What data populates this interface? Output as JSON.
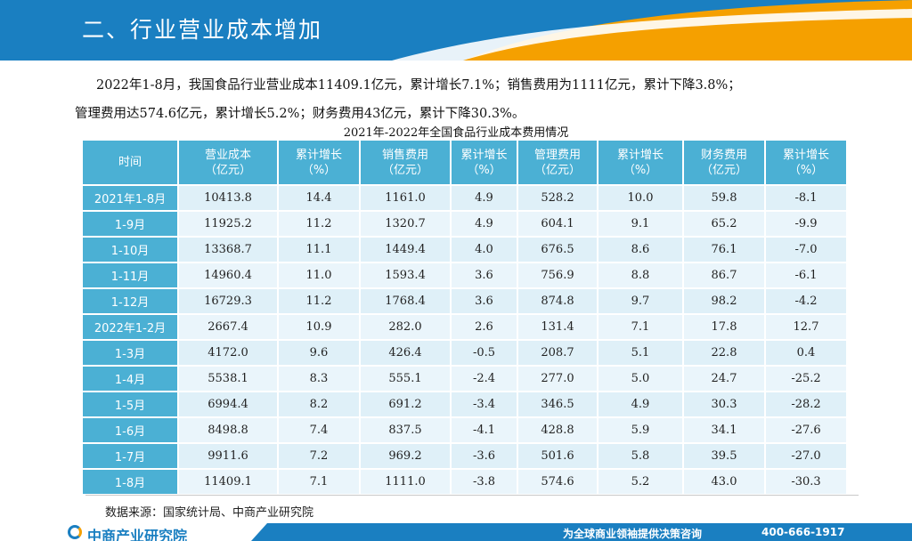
{
  "header": {
    "title": "二、行业营业成本增加"
  },
  "intro": {
    "line1": "2022年1-8月，我国食品行业营业成本11409.1亿元，累计增长7.1%；销售费用为1111亿元，累计下降3.8%；",
    "line2": "管理费用达574.6亿元，累计增长5.2%；财务费用43亿元，累计下降30.3%。"
  },
  "table": {
    "title": "2021年-2022年全国食品行业成本费用情况",
    "headers": [
      [
        "时间",
        ""
      ],
      [
        "营业成本",
        "（亿元）"
      ],
      [
        "累计增长",
        "（%）"
      ],
      [
        "销售费用",
        "（亿元）"
      ],
      [
        "累计增长",
        "（%）"
      ],
      [
        "管理费用",
        "（亿元）"
      ],
      [
        "累计增长",
        "（%）"
      ],
      [
        "财务费用",
        "（亿元）"
      ],
      [
        "累计增长",
        "（%）"
      ]
    ],
    "rows": [
      [
        "2021年1-8月",
        "10413.8",
        "14.4",
        "1161.0",
        "4.9",
        "528.2",
        "10.0",
        "59.8",
        "-8.1"
      ],
      [
        "1-9月",
        "11925.2",
        "11.2",
        "1320.7",
        "4.9",
        "604.1",
        "9.1",
        "65.2",
        "-9.9"
      ],
      [
        "1-10月",
        "13368.7",
        "11.1",
        "1449.4",
        "4.0",
        "676.5",
        "8.6",
        "76.1",
        "-7.0"
      ],
      [
        "1-11月",
        "14960.4",
        "11.0",
        "1593.4",
        "3.6",
        "756.9",
        "8.8",
        "86.7",
        "-6.1"
      ],
      [
        "1-12月",
        "16729.3",
        "11.2",
        "1768.4",
        "3.6",
        "874.8",
        "9.7",
        "98.2",
        "-4.2"
      ],
      [
        "2022年1-2月",
        "2667.4",
        "10.9",
        "282.0",
        "2.6",
        "131.4",
        "7.1",
        "17.8",
        "12.7"
      ],
      [
        "1-3月",
        "4172.0",
        "9.6",
        "426.4",
        "-0.5",
        "208.7",
        "5.1",
        "22.8",
        "0.4"
      ],
      [
        "1-4月",
        "5538.1",
        "8.3",
        "555.1",
        "-2.4",
        "277.0",
        "5.0",
        "24.7",
        "-25.2"
      ],
      [
        "1-5月",
        "6994.4",
        "8.2",
        "691.2",
        "-3.4",
        "346.5",
        "4.9",
        "30.3",
        "-28.2"
      ],
      [
        "1-6月",
        "8498.8",
        "7.4",
        "837.5",
        "-4.1",
        "428.8",
        "5.9",
        "34.1",
        "-27.6"
      ],
      [
        "1-7月",
        "9911.6",
        "7.2",
        "969.2",
        "-3.6",
        "501.6",
        "5.8",
        "39.5",
        "-27.0"
      ],
      [
        "1-8月",
        "11409.1",
        "7.1",
        "1111.0",
        "-3.8",
        "574.6",
        "5.2",
        "43.0",
        "-30.3"
      ]
    ]
  },
  "source": "数据来源：国家统计局、中商产业研究院",
  "footer": {
    "logo": "中商产业研究院",
    "slogan": "为全球商业领袖提供决策咨询",
    "phone": "400-666-1917"
  },
  "colors": {
    "header_blue": "#1a7fc1",
    "header_orange": "#f5a000",
    "table_header": "#4bb0d4",
    "table_cell": "#dff0f8"
  }
}
